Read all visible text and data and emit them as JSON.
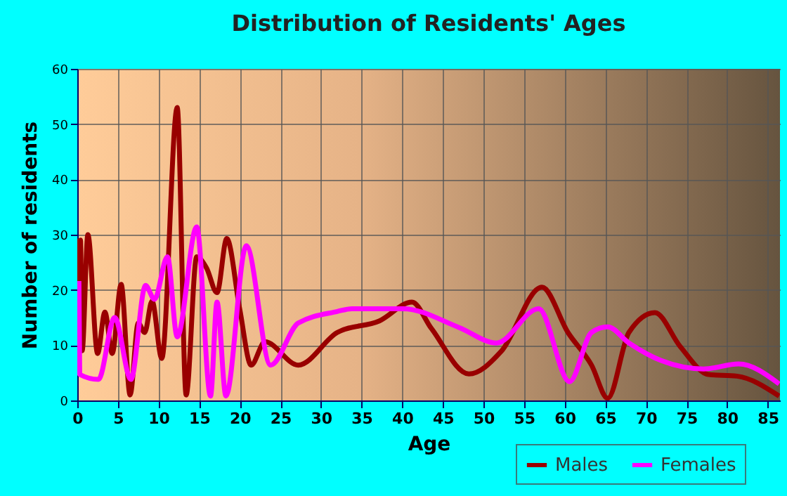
{
  "chart_data": {
    "type": "line",
    "title": "Distribution of Residents' Ages",
    "xlabel": "Age",
    "ylabel": "Number of residents",
    "xlim": [
      0,
      86.5
    ],
    "xticks": [
      0,
      5,
      10,
      15,
      20,
      25,
      30,
      35,
      40,
      45,
      50,
      55,
      60,
      65,
      70,
      75,
      80,
      85
    ],
    "ylim": [
      0,
      60
    ],
    "yticks": [
      0,
      10,
      20,
      30,
      40,
      50,
      60
    ],
    "grid": true,
    "legend": "bottom",
    "marker": "none",
    "line_style": "solid",
    "series": [
      {
        "name": "Males",
        "color": "#990000",
        "x": [
          0,
          0.2,
          0.4,
          0.6,
          1.3,
          2.5,
          3.4,
          4.3,
          5.4,
          6.5,
          7.5,
          8.3,
          9.2,
          10.4,
          12.3,
          13.4,
          14.7,
          15.9,
          17.2,
          18.4,
          20,
          21.4,
          23.1,
          27.2,
          32,
          37.2,
          41.2,
          43.6,
          48.2,
          52.2,
          57.2,
          60.4,
          63.3,
          65.3,
          67.9,
          71.1,
          74.2,
          77.7,
          81.2,
          86.4
        ],
        "values": [
          29.3,
          9,
          29,
          9,
          30,
          8.5,
          16,
          8.5,
          21,
          1,
          14,
          12.3,
          18,
          7.6,
          53,
          1,
          26,
          24,
          19.5,
          29.3,
          16.5,
          6.4,
          10.6,
          6.4,
          12.3,
          14.4,
          17.8,
          13,
          4.8,
          8.9,
          20.5,
          12.3,
          6.4,
          0.4,
          12.3,
          15.9,
          9.8,
          4.7,
          4.4,
          0.8
        ]
      },
      {
        "name": "Females",
        "color": "#ff00ff",
        "x": [
          0.2,
          0.3,
          2.6,
          4.6,
          6.6,
          8.4,
          9.5,
          11.1,
          12.3,
          14.7,
          16.4,
          17.2,
          18.3,
          20.8,
          23.8,
          27.2,
          32,
          33.8,
          40.1,
          47,
          51.6,
          56.8,
          60.6,
          63.3,
          65.3,
          67.9,
          71.9,
          77.1,
          81.4,
          86.4
        ],
        "values": [
          21.6,
          4.7,
          3.8,
          15,
          3.8,
          20.8,
          18.3,
          26,
          11.5,
          31.4,
          0.8,
          17.8,
          0.8,
          28,
          6.4,
          14,
          16.1,
          16.6,
          16.6,
          13.2,
          10.4,
          16.6,
          3.4,
          12.3,
          13.3,
          10.4,
          7.2,
          5.7,
          6.6,
          3
        ]
      }
    ]
  }
}
